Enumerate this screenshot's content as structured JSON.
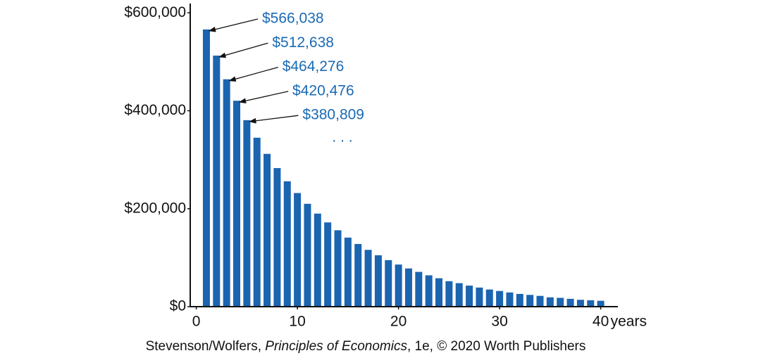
{
  "chart_data": {
    "type": "bar",
    "x": [
      1,
      2,
      3,
      4,
      5,
      6,
      7,
      8,
      9,
      10,
      11,
      12,
      13,
      14,
      15,
      16,
      17,
      18,
      19,
      20,
      21,
      22,
      23,
      24,
      25,
      26,
      27,
      28,
      29,
      30,
      31,
      32,
      33,
      34,
      35,
      36,
      37,
      38,
      39,
      40
    ],
    "values": [
      566038,
      512638,
      464276,
      420476,
      380809,
      345000,
      312000,
      283000,
      256000,
      232000,
      210000,
      190000,
      172000,
      156000,
      141000,
      128000,
      116000,
      105000,
      95000,
      86000,
      78000,
      71000,
      64000,
      58000,
      52000,
      48000,
      43000,
      39000,
      35000,
      32000,
      29000,
      26000,
      24000,
      22000,
      19000,
      18000,
      16000,
      14000,
      13000,
      12000
    ],
    "value_labels": [
      "$566,038",
      "$512,638",
      "$464,276",
      "$420,476",
      "$380,809",
      null,
      null,
      null,
      null,
      null,
      null,
      null,
      null,
      null,
      null,
      null,
      null,
      null,
      null,
      null,
      null,
      null,
      null,
      null,
      null,
      null,
      null,
      null,
      null,
      null,
      null,
      null,
      null,
      null,
      null,
      null,
      null,
      null,
      null,
      null
    ],
    "annotation": ". . .",
    "color": "#1b64b0",
    "label_color": "#1b6ab4",
    "xlim": [
      -0.6,
      41.7
    ],
    "xticks": [
      0,
      10,
      20,
      30,
      40
    ],
    "x_label": "years",
    "ylim": [
      0,
      619000
    ],
    "yticks": [
      {
        "value": 0,
        "label": "$0"
      },
      {
        "value": 200000,
        "label": "$200,000"
      },
      {
        "value": 400000,
        "label": "$400,000"
      },
      {
        "value": 600000,
        "label": "$600,000"
      }
    ],
    "grid": false,
    "source": [
      "Stevenson/Wolfers, ",
      "Principles of Economics",
      ", 1e, © 2020 Worth Publishers"
    ]
  }
}
